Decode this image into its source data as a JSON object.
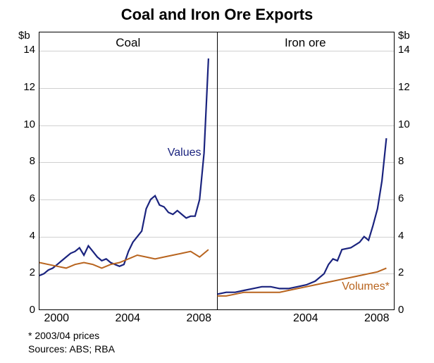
{
  "title": "Coal and Iron Ore Exports",
  "y_unit": "$b",
  "y_min": 0,
  "y_max": 15,
  "y_ticks": [
    0,
    2,
    4,
    6,
    8,
    10,
    12,
    14
  ],
  "grid_color": "#d0d0d0",
  "background_color": "#ffffff",
  "panels": {
    "coal": {
      "title": "Coal",
      "x_min": 1999,
      "x_max": 2009,
      "x_ticks": [
        2000,
        2004,
        2008
      ],
      "series": {
        "values": {
          "label": "Values",
          "color": "#1a237e",
          "width": 2.2,
          "label_x": 2006.2,
          "label_y": 8.5,
          "points": [
            [
              1999.0,
              1.9
            ],
            [
              1999.25,
              2.0
            ],
            [
              1999.5,
              2.2
            ],
            [
              1999.75,
              2.3
            ],
            [
              2000.0,
              2.5
            ],
            [
              2000.25,
              2.7
            ],
            [
              2000.5,
              2.9
            ],
            [
              2000.75,
              3.1
            ],
            [
              2001.0,
              3.2
            ],
            [
              2001.25,
              3.4
            ],
            [
              2001.5,
              3.0
            ],
            [
              2001.75,
              3.5
            ],
            [
              2002.0,
              3.2
            ],
            [
              2002.25,
              2.9
            ],
            [
              2002.5,
              2.7
            ],
            [
              2002.75,
              2.8
            ],
            [
              2003.0,
              2.6
            ],
            [
              2003.25,
              2.5
            ],
            [
              2003.5,
              2.4
            ],
            [
              2003.75,
              2.5
            ],
            [
              2004.0,
              3.2
            ],
            [
              2004.25,
              3.7
            ],
            [
              2004.5,
              4.0
            ],
            [
              2004.75,
              4.3
            ],
            [
              2005.0,
              5.5
            ],
            [
              2005.25,
              6.0
            ],
            [
              2005.5,
              6.2
            ],
            [
              2005.75,
              5.7
            ],
            [
              2006.0,
              5.6
            ],
            [
              2006.25,
              5.3
            ],
            [
              2006.5,
              5.2
            ],
            [
              2006.75,
              5.4
            ],
            [
              2007.0,
              5.2
            ],
            [
              2007.25,
              5.0
            ],
            [
              2007.5,
              5.1
            ],
            [
              2007.75,
              5.1
            ],
            [
              2008.0,
              6.0
            ],
            [
              2008.25,
              8.5
            ],
            [
              2008.5,
              13.6
            ]
          ]
        },
        "volumes": {
          "color": "#b8641e",
          "width": 2.0,
          "points": [
            [
              1999.0,
              2.6
            ],
            [
              1999.5,
              2.5
            ],
            [
              2000.0,
              2.4
            ],
            [
              2000.5,
              2.3
            ],
            [
              2001.0,
              2.5
            ],
            [
              2001.5,
              2.6
            ],
            [
              2002.0,
              2.5
            ],
            [
              2002.5,
              2.3
            ],
            [
              2003.0,
              2.5
            ],
            [
              2003.5,
              2.6
            ],
            [
              2004.0,
              2.8
            ],
            [
              2004.5,
              3.0
            ],
            [
              2005.0,
              2.9
            ],
            [
              2005.5,
              2.8
            ],
            [
              2006.0,
              2.9
            ],
            [
              2006.5,
              3.0
            ],
            [
              2007.0,
              3.1
            ],
            [
              2007.5,
              3.2
            ],
            [
              2008.0,
              2.9
            ],
            [
              2008.5,
              3.3
            ]
          ]
        }
      }
    },
    "iron": {
      "title": "Iron ore",
      "x_min": 1999,
      "x_max": 2009,
      "x_ticks": [
        2004,
        2008
      ],
      "series": {
        "values": {
          "color": "#1a237e",
          "width": 2.2,
          "points": [
            [
              1999.0,
              0.9
            ],
            [
              1999.5,
              1.0
            ],
            [
              2000.0,
              1.0
            ],
            [
              2000.5,
              1.1
            ],
            [
              2001.0,
              1.2
            ],
            [
              2001.5,
              1.3
            ],
            [
              2002.0,
              1.3
            ],
            [
              2002.5,
              1.2
            ],
            [
              2003.0,
              1.2
            ],
            [
              2003.5,
              1.3
            ],
            [
              2004.0,
              1.4
            ],
            [
              2004.5,
              1.6
            ],
            [
              2005.0,
              2.0
            ],
            [
              2005.25,
              2.5
            ],
            [
              2005.5,
              2.8
            ],
            [
              2005.75,
              2.7
            ],
            [
              2006.0,
              3.3
            ],
            [
              2006.5,
              3.4
            ],
            [
              2007.0,
              3.7
            ],
            [
              2007.25,
              4.0
            ],
            [
              2007.5,
              3.8
            ],
            [
              2007.75,
              4.6
            ],
            [
              2008.0,
              5.5
            ],
            [
              2008.25,
              7.0
            ],
            [
              2008.5,
              9.3
            ]
          ]
        },
        "volumes": {
          "label": "Volumes*",
          "color": "#b8641e",
          "width": 2.0,
          "label_x": 2006.0,
          "label_y": 1.3,
          "points": [
            [
              1999.0,
              0.8
            ],
            [
              1999.5,
              0.8
            ],
            [
              2000.0,
              0.9
            ],
            [
              2000.5,
              1.0
            ],
            [
              2001.0,
              1.0
            ],
            [
              2001.5,
              1.0
            ],
            [
              2002.0,
              1.0
            ],
            [
              2002.5,
              1.0
            ],
            [
              2003.0,
              1.1
            ],
            [
              2003.5,
              1.2
            ],
            [
              2004.0,
              1.3
            ],
            [
              2004.5,
              1.4
            ],
            [
              2005.0,
              1.5
            ],
            [
              2005.5,
              1.6
            ],
            [
              2006.0,
              1.7
            ],
            [
              2006.5,
              1.8
            ],
            [
              2007.0,
              1.9
            ],
            [
              2007.5,
              2.0
            ],
            [
              2008.0,
              2.1
            ],
            [
              2008.5,
              2.3
            ]
          ]
        }
      }
    }
  },
  "footnotes": [
    "*    2003/04 prices",
    "Sources: ABS; RBA"
  ]
}
